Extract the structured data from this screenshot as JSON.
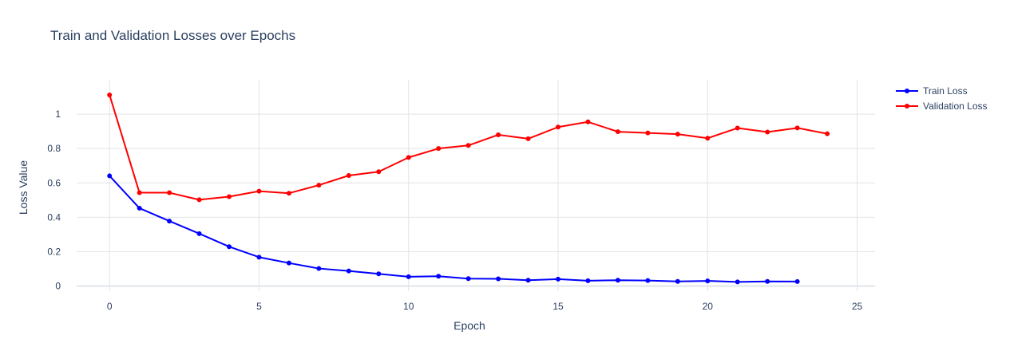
{
  "chart_data": {
    "type": "line",
    "title": "Train and Validation Losses over Epochs",
    "xlabel": "Epoch",
    "ylabel": "Loss Value",
    "xlim": [
      -1.1,
      25.6
    ],
    "ylim": [
      -0.03,
      1.2
    ],
    "x_ticks": [
      0,
      5,
      10,
      15,
      20,
      25
    ],
    "y_ticks": [
      0,
      0.2,
      0.4,
      0.6,
      0.8,
      1
    ],
    "grid": true,
    "legend_position": "top-right",
    "series": [
      {
        "name": "Train Loss",
        "color": "#0000ff",
        "x": [
          0,
          1,
          2,
          3,
          4,
          5,
          6,
          7,
          8,
          9,
          10,
          11,
          12,
          13,
          14,
          15,
          16,
          17,
          18,
          19,
          20,
          21,
          22,
          23
        ],
        "values": [
          0.641,
          0.453,
          0.378,
          0.305,
          0.229,
          0.168,
          0.134,
          0.102,
          0.088,
          0.071,
          0.054,
          0.057,
          0.043,
          0.042,
          0.034,
          0.04,
          0.031,
          0.034,
          0.032,
          0.027,
          0.03,
          0.024,
          0.027,
          0.026
        ]
      },
      {
        "name": "Validation Loss",
        "color": "#ff0000",
        "x": [
          0,
          1,
          2,
          3,
          4,
          5,
          6,
          7,
          8,
          9,
          10,
          11,
          12,
          13,
          14,
          15,
          16,
          17,
          18,
          19,
          20,
          21,
          22,
          23,
          24
        ],
        "values": [
          1.112,
          0.543,
          0.543,
          0.502,
          0.52,
          0.552,
          0.54,
          0.587,
          0.643,
          0.665,
          0.748,
          0.8,
          0.818,
          0.88,
          0.857,
          0.925,
          0.955,
          0.898,
          0.891,
          0.884,
          0.86,
          0.919,
          0.896,
          0.92,
          0.886
        ]
      }
    ]
  }
}
